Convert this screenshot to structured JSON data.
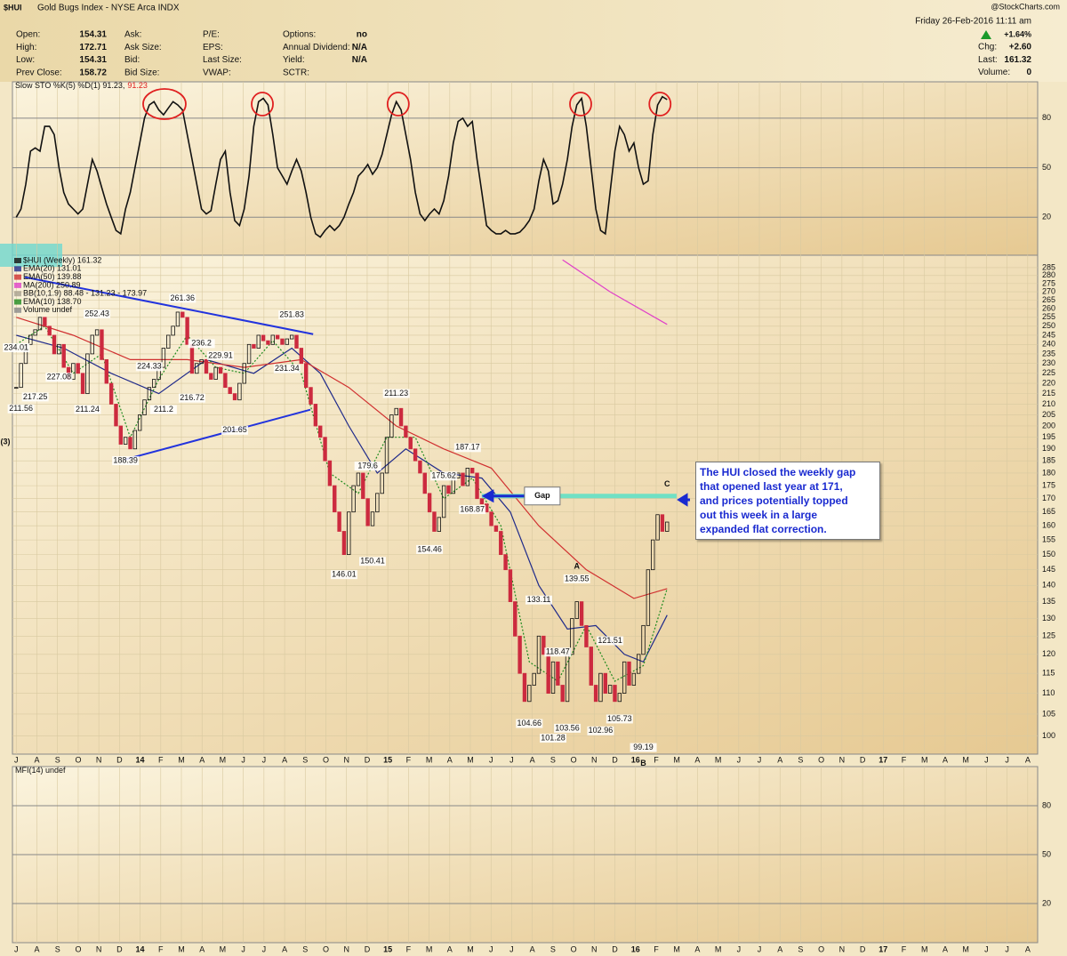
{
  "header": {
    "symbol": "$HUI",
    "name": "Gold Bugs Index - NYSE Arca INDX",
    "credit": "@StockCharts.com",
    "date": "Friday  26-Feb-2016 11:11 am",
    "change_pct": "+1.64%",
    "columns": [
      [
        {
          "label": "Open:",
          "value": 154.31
        },
        {
          "label": "High:",
          "value": 172.71
        },
        {
          "label": "Low:",
          "value": 154.31
        },
        {
          "label": "Prev Close:",
          "value": 158.72
        }
      ],
      [
        {
          "label": "Ask:"
        },
        {
          "label": "Ask Size:"
        },
        {
          "label": "Bid:"
        },
        {
          "label": "Bid Size:"
        }
      ],
      [
        {
          "label": "P/E:"
        },
        {
          "label": "EPS:"
        },
        {
          "label": "Last Size:"
        },
        {
          "label": "VWAP:"
        }
      ],
      [
        {
          "label": "Options:",
          "value": "no"
        },
        {
          "label": "Annual Dividend:",
          "value": "N/A"
        },
        {
          "label": "Yield:",
          "value": "N/A"
        },
        {
          "label": "SCTR:"
        }
      ]
    ],
    "right": [
      {
        "label": "Chg:",
        "value": "+2.60"
      },
      {
        "label": "Last:",
        "value": 161.32
      },
      {
        "label": "Volume:",
        "value": 0
      }
    ]
  },
  "chart_data": [
    {
      "type": "line",
      "title": "Slow STO %K(5) %D(1) 91.23,",
      "title_value": 91.23,
      "ylim": [
        -3,
        102
      ],
      "yticks": [
        20,
        50,
        80
      ],
      "grid": true,
      "color": "#111111",
      "highlight_x": [
        31.2,
        51.8,
        80.4,
        118.8,
        135.5
      ],
      "highlight_color": "#e02020",
      "values": [
        20,
        25,
        40,
        60,
        62,
        60,
        75,
        75,
        70,
        50,
        35,
        28,
        25,
        22,
        25,
        40,
        55,
        48,
        38,
        28,
        20,
        12,
        10,
        25,
        35,
        50,
        65,
        80,
        88,
        90,
        85,
        82,
        86,
        90,
        88,
        85,
        70,
        55,
        40,
        25,
        22,
        24,
        40,
        55,
        60,
        35,
        18,
        15,
        25,
        45,
        75,
        90,
        92,
        88,
        70,
        50,
        45,
        40,
        48,
        55,
        48,
        35,
        20,
        10,
        8,
        12,
        15,
        12,
        15,
        20,
        28,
        35,
        45,
        48,
        52,
        46,
        50,
        58,
        70,
        82,
        90,
        85,
        70,
        55,
        35,
        22,
        18,
        22,
        25,
        22,
        30,
        45,
        65,
        78,
        80,
        75,
        78,
        55,
        35,
        15,
        12,
        10,
        10,
        12,
        10,
        10,
        11,
        14,
        18,
        25,
        42,
        55,
        48,
        28,
        30,
        40,
        55,
        75,
        88,
        92,
        75,
        50,
        25,
        12,
        10,
        35,
        60,
        75,
        70,
        60,
        65,
        50,
        40,
        42,
        70,
        88,
        93,
        91.23
      ]
    },
    {
      "type": "candlestick",
      "log_scale": true,
      "grid": true,
      "xlim": [
        -0.8,
        215
      ],
      "ylim": [
        96,
        293
      ],
      "yticks": [
        100,
        105,
        110,
        115,
        120,
        125,
        130,
        135,
        140,
        145,
        150,
        155,
        160,
        165,
        170,
        175,
        180,
        185,
        190,
        195,
        200,
        205,
        210,
        215,
        220,
        225,
        230,
        235,
        240,
        245,
        250,
        255,
        260,
        265,
        270,
        275,
        280,
        285
      ],
      "xticks": [
        {
          "value": 0,
          "label": "J"
        },
        {
          "value": 4.35,
          "label": "A"
        },
        {
          "value": 8.69,
          "label": "S"
        },
        {
          "value": 13.04,
          "label": "O"
        },
        {
          "value": 17.38,
          "label": "N"
        },
        {
          "value": 21.73,
          "label": "D"
        },
        {
          "value": 26.07,
          "label": "14"
        },
        {
          "value": 30.42,
          "label": "F"
        },
        {
          "value": 34.76,
          "label": "M"
        },
        {
          "value": 39.11,
          "label": "A"
        },
        {
          "value": 43.45,
          "label": "M"
        },
        {
          "value": 47.8,
          "label": "J"
        },
        {
          "value": 52.14,
          "label": "J"
        },
        {
          "value": 56.49,
          "label": "A"
        },
        {
          "value": 60.83,
          "label": "S"
        },
        {
          "value": 65.18,
          "label": "O"
        },
        {
          "value": 69.52,
          "label": "N"
        },
        {
          "value": 73.87,
          "label": "D"
        },
        {
          "value": 78.21,
          "label": "15"
        },
        {
          "value": 82.56,
          "label": "F"
        },
        {
          "value": 86.9,
          "label": "M"
        },
        {
          "value": 91.25,
          "label": "A"
        },
        {
          "value": 95.59,
          "label": "M"
        },
        {
          "value": 99.94,
          "label": "J"
        },
        {
          "value": 104.28,
          "label": "J"
        },
        {
          "value": 108.63,
          "label": "A"
        },
        {
          "value": 112.97,
          "label": "S"
        },
        {
          "value": 117.32,
          "label": "O"
        },
        {
          "value": 121.66,
          "label": "N"
        },
        {
          "value": 126.01,
          "label": "D"
        },
        {
          "value": 130.35,
          "label": "16"
        },
        {
          "value": 134.7,
          "label": "F"
        },
        {
          "value": 139.04,
          "label": "M"
        },
        {
          "value": 143.39,
          "label": "A"
        },
        {
          "value": 147.73,
          "label": "M"
        },
        {
          "value": 152.08,
          "label": "J"
        },
        {
          "value": 156.42,
          "label": "J"
        },
        {
          "value": 160.77,
          "label": "A"
        },
        {
          "value": 165.11,
          "label": "S"
        },
        {
          "value": 169.46,
          "label": "O"
        },
        {
          "value": 173.8,
          "label": "N"
        },
        {
          "value": 178.15,
          "label": "D"
        },
        {
          "value": 182.49,
          "label": "17"
        },
        {
          "value": 186.84,
          "label": "F"
        },
        {
          "value": 191.18,
          "label": "M"
        },
        {
          "value": 195.53,
          "label": "A"
        },
        {
          "value": 199.87,
          "label": "M"
        },
        {
          "value": 204.22,
          "label": "J"
        },
        {
          "value": 208.56,
          "label": "J"
        },
        {
          "value": 212.91,
          "label": "A"
        }
      ],
      "up_color": "#111111",
      "down_color": "#cc2a3f",
      "series": [
        {
          "name": "$HUI (Weekly) 161.32",
          "color": "#111111",
          "values": [
            218,
            230,
            240,
            245,
            248,
            255,
            250,
            245,
            235,
            240,
            228,
            222,
            230,
            225,
            215,
            235,
            245,
            248,
            232,
            220,
            210,
            200,
            192,
            195,
            190,
            198,
            205,
            212,
            218,
            222,
            228,
            238,
            245,
            250,
            258,
            255,
            240,
            225,
            230,
            232,
            225,
            222,
            228,
            225,
            218,
            215,
            212,
            220,
            230,
            240,
            238,
            245,
            242,
            240,
            245,
            243,
            240,
            243,
            245,
            238,
            230,
            218,
            210,
            200,
            195,
            185,
            175,
            165,
            158,
            150,
            165,
            175,
            180,
            170,
            160,
            165,
            172,
            180,
            195,
            205,
            208,
            200,
            195,
            190,
            185,
            180,
            172,
            165,
            158,
            163,
            175,
            172,
            178,
            180,
            175,
            182,
            180,
            170,
            168,
            165,
            160,
            158,
            150,
            145,
            135,
            125,
            115,
            108,
            112,
            115,
            125,
            120,
            110,
            118,
            112,
            108,
            120,
            130,
            135,
            128,
            122,
            112,
            108,
            115,
            110,
            112,
            108,
            110,
            118,
            112,
            115,
            120,
            128,
            145,
            155,
            164,
            158,
            161.32
          ]
        },
        {
          "name": "EMA(20) 131.01",
          "color": "#1f2a8a",
          "x": [
            0,
            10,
            20,
            30,
            40,
            50,
            58,
            64,
            70,
            76,
            82,
            90,
            98,
            104,
            110,
            116,
            122,
            128,
            132,
            137
          ],
          "values": [
            245,
            238,
            225,
            215,
            232,
            225,
            238,
            225,
            200,
            180,
            190,
            180,
            178,
            165,
            140,
            127,
            128,
            120,
            118,
            131
          ]
        },
        {
          "name": "EMA(50) 139.88",
          "color": "#d03030",
          "x": [
            0,
            12,
            24,
            36,
            48,
            60,
            70,
            80,
            90,
            100,
            110,
            120,
            130,
            137
          ],
          "values": [
            255,
            245,
            232,
            232,
            228,
            232,
            218,
            200,
            190,
            182,
            160,
            145,
            136,
            139
          ]
        },
        {
          "name": "MA(200) 250.89",
          "color": "#e040c8",
          "x": [
            115,
            125,
            137
          ],
          "values": [
            290,
            270,
            251
          ]
        },
        {
          "name": "BB(10,1.9) 88.48 - 131.23 - 173.97",
          "color": "#a8a090"
        },
        {
          "name": "EMA(10) 138.70",
          "color": "#1e8a1e",
          "dashed": true,
          "x": [
            0,
            6,
            12,
            18,
            24,
            30,
            36,
            42,
            48,
            54,
            60,
            66,
            72,
            78,
            84,
            90,
            96,
            102,
            108,
            114,
            120,
            126,
            132,
            137
          ],
          "values": [
            240,
            250,
            225,
            235,
            195,
            222,
            245,
            228,
            225,
            242,
            225,
            180,
            172,
            195,
            195,
            170,
            178,
            160,
            118,
            113,
            128,
            113,
            117,
            139
          ]
        },
        {
          "name": "Volume undef",
          "color": "#888888"
        }
      ],
      "point_labels": [
        {
          "x": 0,
          "value": 234.01
        },
        {
          "x": 1,
          "value": 211.56
        },
        {
          "x": 4,
          "value": 217.25
        },
        {
          "x": 9,
          "value": 227.08
        },
        {
          "x": 15,
          "value": 211.24
        },
        {
          "x": 17,
          "value": 252.43
        },
        {
          "x": 23,
          "value": 188.39
        },
        {
          "x": 28,
          "value": 224.33
        },
        {
          "x": 31,
          "value": 211.2
        },
        {
          "x": 35,
          "value": 261.36
        },
        {
          "x": 37,
          "value": 216.72
        },
        {
          "x": 39,
          "value": 236.2
        },
        {
          "x": 43,
          "value": 229.91
        },
        {
          "x": 46,
          "value": 201.65
        },
        {
          "x": 57,
          "value": 231.34
        },
        {
          "x": 58,
          "value": 251.83
        },
        {
          "x": 69,
          "value": 146.01
        },
        {
          "x": 74,
          "value": 179.6
        },
        {
          "x": 75,
          "value": 150.41
        },
        {
          "x": 80,
          "value": 211.23
        },
        {
          "x": 87,
          "value": 154.46
        },
        {
          "x": 90,
          "value": 175.62
        },
        {
          "x": 95,
          "value": 187.17
        },
        {
          "x": 96,
          "value": 168.87
        },
        {
          "x": 108,
          "value": 104.66
        },
        {
          "x": 110,
          "value": 133.11
        },
        {
          "x": 113,
          "value": 101.28
        },
        {
          "x": 114,
          "value": 118.47
        },
        {
          "x": 116,
          "value": 103.56
        },
        {
          "x": 118,
          "value": 139.55
        },
        {
          "x": 123,
          "value": 102.96
        },
        {
          "x": 125,
          "value": 121.51
        },
        {
          "x": 127,
          "value": 105.73
        },
        {
          "x": 132,
          "value": 99.19
        }
      ],
      "trendlines": [
        {
          "x": [
            1.8,
            62.5
          ],
          "y": [
            279,
            245.6
          ],
          "color": "#2233dd"
        },
        {
          "x": [
            22.8,
            61.9
          ],
          "y": [
            185.5,
            207.4
          ],
          "color": "#2233dd"
        }
      ],
      "gap": {
        "label": "Gap",
        "value": 171,
        "x": [
          98,
          139
        ],
        "color": "#70e0c4"
      },
      "wave_labels": [
        {
          "text": "(3)",
          "x": -2.3,
          "y": 193
        },
        {
          "text": "A",
          "x": 118,
          "y": 146
        },
        {
          "text": "B",
          "x": 132,
          "y": 94
        },
        {
          "text": "C",
          "x": 137,
          "y": 175.5
        }
      ],
      "note": [
        "The HUI closed the weekly gap",
        "that opened last year at 171,",
        "and prices potentially topped",
        "out this week in a large",
        "expanded flat correction."
      ]
    },
    {
      "type": "line",
      "title": "MFI(14) undef",
      "ylim": [
        -4,
        104
      ],
      "yticks": [
        20,
        50,
        80
      ],
      "grid": true
    }
  ]
}
